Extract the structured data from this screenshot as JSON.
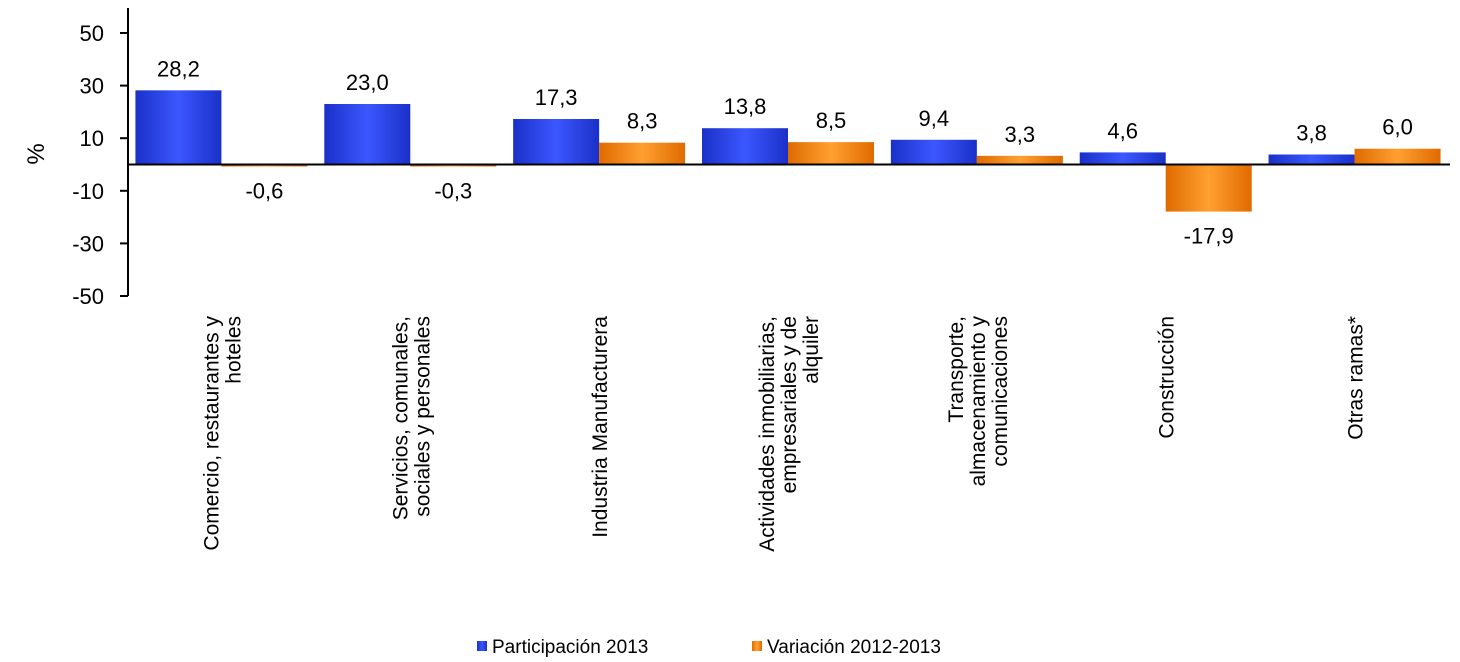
{
  "chart_data": {
    "type": "bar",
    "title": "",
    "xlabel": "",
    "ylabel": "%",
    "ylim": [
      -50,
      50
    ],
    "yticks": [
      50,
      30,
      10,
      -10,
      -30,
      -50
    ],
    "grid": false,
    "legend_position": "bottom",
    "categories": [
      [
        "Comercio, restaurantes y",
        "hoteles"
      ],
      [
        "Servicios, comunales,",
        "sociales y personales"
      ],
      [
        "Industria Manufacturera"
      ],
      [
        "Actividades inmobiliarias,",
        "empresariales y de",
        "alquiler"
      ],
      [
        "Transporte,",
        "almacenamiento y",
        "comunicaciones"
      ],
      [
        "Construcción"
      ],
      [
        "Otras ramas*"
      ]
    ],
    "series": [
      {
        "name": "Participación 2013",
        "color": "#2b45ee",
        "values": [
          28.2,
          23.0,
          17.3,
          13.8,
          9.4,
          4.6,
          3.8
        ],
        "labels": [
          "28,2",
          "23,0",
          "17,3",
          "13,8",
          "9,4",
          "4,6",
          "3,8"
        ]
      },
      {
        "name": "Variación 2012-2013",
        "color": "#f68a0e",
        "values": [
          -0.6,
          -0.3,
          8.3,
          8.5,
          3.3,
          -17.9,
          6.0
        ],
        "labels": [
          "-0,6",
          "-0,3",
          "8,3",
          "8,5",
          "3,3",
          "-17,9",
          "6,0"
        ]
      }
    ]
  }
}
